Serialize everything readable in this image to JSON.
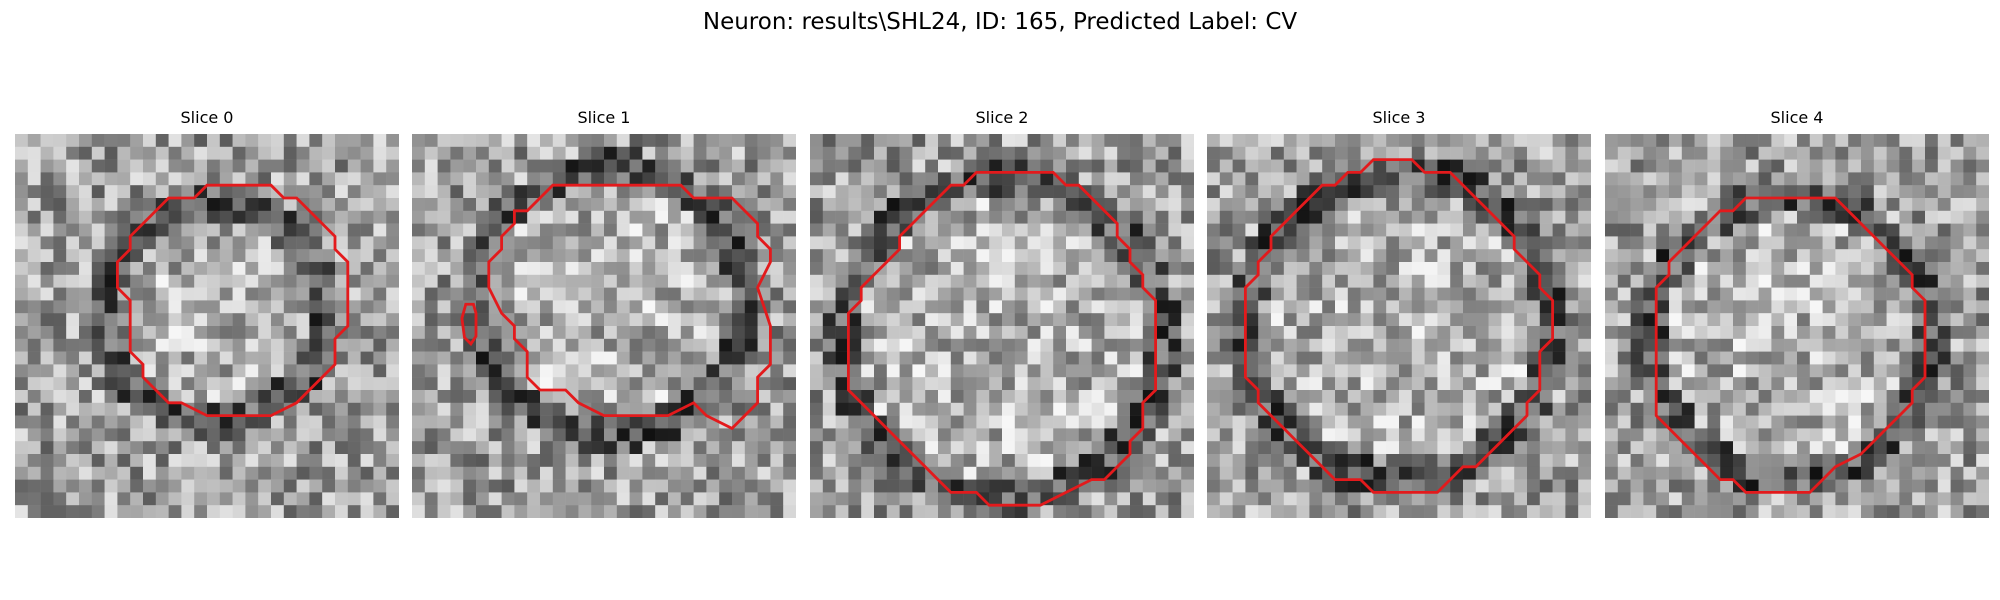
{
  "figure": {
    "suptitle": "Neuron: results\\SHL24, ID: 165, Predicted Label: CV"
  },
  "panels": [
    {
      "title": "Slice 0"
    },
    {
      "title": "Slice 1"
    },
    {
      "title": "Slice 2"
    },
    {
      "title": "Slice 3"
    },
    {
      "title": "Slice 4"
    }
  ],
  "colors": {
    "contour": "#e31a1c",
    "colormap": "gray"
  }
}
